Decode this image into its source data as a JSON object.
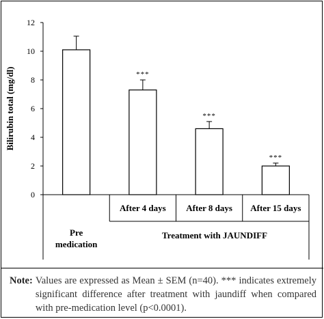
{
  "chart_data": {
    "type": "bar",
    "ylabel": "Bilirubin total (mg/dl)",
    "ylim": [
      0,
      12
    ],
    "yticks": [
      0,
      2,
      4,
      6,
      8,
      10,
      12
    ],
    "categories": [
      "Pre medication",
      "After 4 days",
      "After 8 days",
      "After 15 days"
    ],
    "category_lines": [
      [
        "Pre",
        "medication"
      ],
      [
        "After 4 days"
      ],
      [
        "After 8 days"
      ],
      [
        "After 15 days"
      ]
    ],
    "values": [
      10.1,
      7.3,
      4.6,
      2.0
    ],
    "errors": [
      0.95,
      0.7,
      0.5,
      0.2
    ],
    "annotations": [
      "",
      "***",
      "***",
      "***"
    ],
    "group_label": "Treatment with JAUNDIFF",
    "grid": false,
    "bar_color": "#ffffff",
    "edge_color": "#000000"
  },
  "note": {
    "label": "Note:",
    "text": "Values are expressed as Mean ± SEM (n=40). *** indicates extremely significant difference after treatment with jaundiff when compared with pre-medication level (p<0.0001)."
  }
}
